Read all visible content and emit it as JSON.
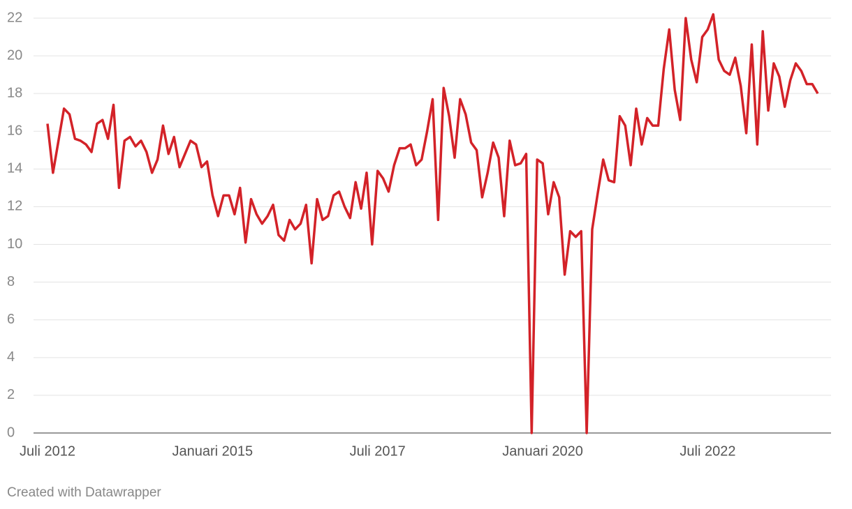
{
  "chart_data": {
    "type": "line",
    "x": [
      "2012-07",
      "2012-08",
      "2012-09",
      "2012-10",
      "2012-11",
      "2012-12",
      "2013-01",
      "2013-02",
      "2013-03",
      "2013-04",
      "2013-05",
      "2013-06",
      "2013-07",
      "2013-08",
      "2013-09",
      "2013-10",
      "2013-11",
      "2013-12",
      "2014-01",
      "2014-02",
      "2014-03",
      "2014-04",
      "2014-05",
      "2014-06",
      "2014-07",
      "2014-08",
      "2014-09",
      "2014-10",
      "2014-11",
      "2014-12",
      "2015-01",
      "2015-02",
      "2015-03",
      "2015-04",
      "2015-05",
      "2015-06",
      "2015-07",
      "2015-08",
      "2015-09",
      "2015-10",
      "2015-11",
      "2015-12",
      "2016-01",
      "2016-02",
      "2016-03",
      "2016-04",
      "2016-05",
      "2016-06",
      "2016-07",
      "2016-08",
      "2016-09",
      "2016-10",
      "2016-11",
      "2016-12",
      "2017-01",
      "2017-02",
      "2017-03",
      "2017-04",
      "2017-05",
      "2017-06",
      "2017-07",
      "2017-08",
      "2017-09",
      "2017-10",
      "2017-11",
      "2017-12",
      "2018-01",
      "2018-02",
      "2018-03",
      "2018-04",
      "2018-05",
      "2018-06",
      "2018-07",
      "2018-08",
      "2018-09",
      "2018-10",
      "2018-11",
      "2018-12",
      "2019-01",
      "2019-02",
      "2019-03",
      "2019-04",
      "2019-05",
      "2019-06",
      "2019-07",
      "2019-08",
      "2019-09",
      "2019-10",
      "2019-11",
      "2019-12",
      "2020-01",
      "2020-02",
      "2020-03",
      "2020-04",
      "2020-05",
      "2020-06",
      "2020-07",
      "2020-08",
      "2020-09",
      "2020-10",
      "2020-11",
      "2020-12",
      "2021-01",
      "2021-02",
      "2021-03",
      "2021-04",
      "2021-05",
      "2021-06",
      "2021-07",
      "2021-08",
      "2021-09",
      "2021-10",
      "2021-11",
      "2021-12",
      "2022-01",
      "2022-02",
      "2022-03",
      "2022-04",
      "2022-05",
      "2022-06",
      "2022-07",
      "2022-08",
      "2022-09",
      "2022-10",
      "2022-11",
      "2022-12",
      "2023-01",
      "2023-02",
      "2023-03",
      "2023-04",
      "2023-05",
      "2023-06",
      "2023-07",
      "2023-08",
      "2023-09",
      "2023-10",
      "2023-11",
      "2023-12",
      "2024-01",
      "2024-02",
      "2024-03"
    ],
    "values": [
      16.4,
      13.8,
      15.5,
      17.2,
      16.9,
      15.6,
      15.5,
      15.3,
      14.9,
      16.4,
      16.6,
      15.6,
      17.4,
      13.0,
      15.5,
      15.7,
      15.2,
      15.5,
      14.9,
      13.8,
      14.5,
      16.3,
      14.8,
      15.7,
      14.1,
      14.8,
      15.5,
      15.3,
      14.1,
      14.4,
      12.6,
      11.5,
      12.6,
      12.6,
      11.6,
      13.0,
      10.1,
      12.4,
      11.6,
      11.1,
      11.5,
      12.1,
      10.5,
      10.2,
      11.3,
      10.8,
      11.1,
      12.1,
      9.0,
      12.4,
      11.3,
      11.5,
      12.6,
      12.8,
      12.0,
      11.4,
      13.3,
      11.9,
      13.8,
      10.0,
      13.9,
      13.5,
      12.8,
      14.2,
      15.1,
      15.1,
      15.3,
      14.2,
      14.5,
      16.0,
      17.7,
      11.3,
      18.3,
      16.8,
      14.6,
      17.7,
      16.9,
      15.4,
      15.0,
      12.5,
      13.8,
      15.4,
      14.6,
      11.5,
      15.5,
      14.2,
      14.3,
      14.8,
      0,
      14.5,
      14.3,
      11.6,
      13.3,
      12.5,
      8.4,
      10.7,
      10.4,
      10.7,
      0,
      10.8,
      12.7,
      14.5,
      13.4,
      13.3,
      16.8,
      16.3,
      14.2,
      17.2,
      15.3,
      16.7,
      16.3,
      16.3,
      19.3,
      21.4,
      18.2,
      16.6,
      22.0,
      19.8,
      18.6,
      21.0,
      21.4,
      22.2,
      19.8,
      19.2,
      19.0,
      19.9,
      18.4,
      15.9,
      20.6,
      15.3,
      21.3,
      17.1,
      19.6,
      18.9,
      17.3,
      18.7,
      19.6,
      19.2,
      18.5,
      18.5,
      18.0
    ],
    "color": "#d32228",
    "ylim": [
      0,
      22
    ],
    "yticks": [
      0,
      2,
      4,
      6,
      8,
      10,
      12,
      14,
      16,
      18,
      20,
      22
    ],
    "grid": true,
    "xticks": [
      {
        "value": "2012-07",
        "label": "Juli 2012"
      },
      {
        "value": "2015-01",
        "label": "Januari 2015"
      },
      {
        "value": "2017-07",
        "label": "Juli 2017"
      },
      {
        "value": "2020-01",
        "label": "Januari 2020"
      },
      {
        "value": "2022-07",
        "label": "Juli 2022"
      }
    ],
    "credit": "Created with Datawrapper"
  }
}
